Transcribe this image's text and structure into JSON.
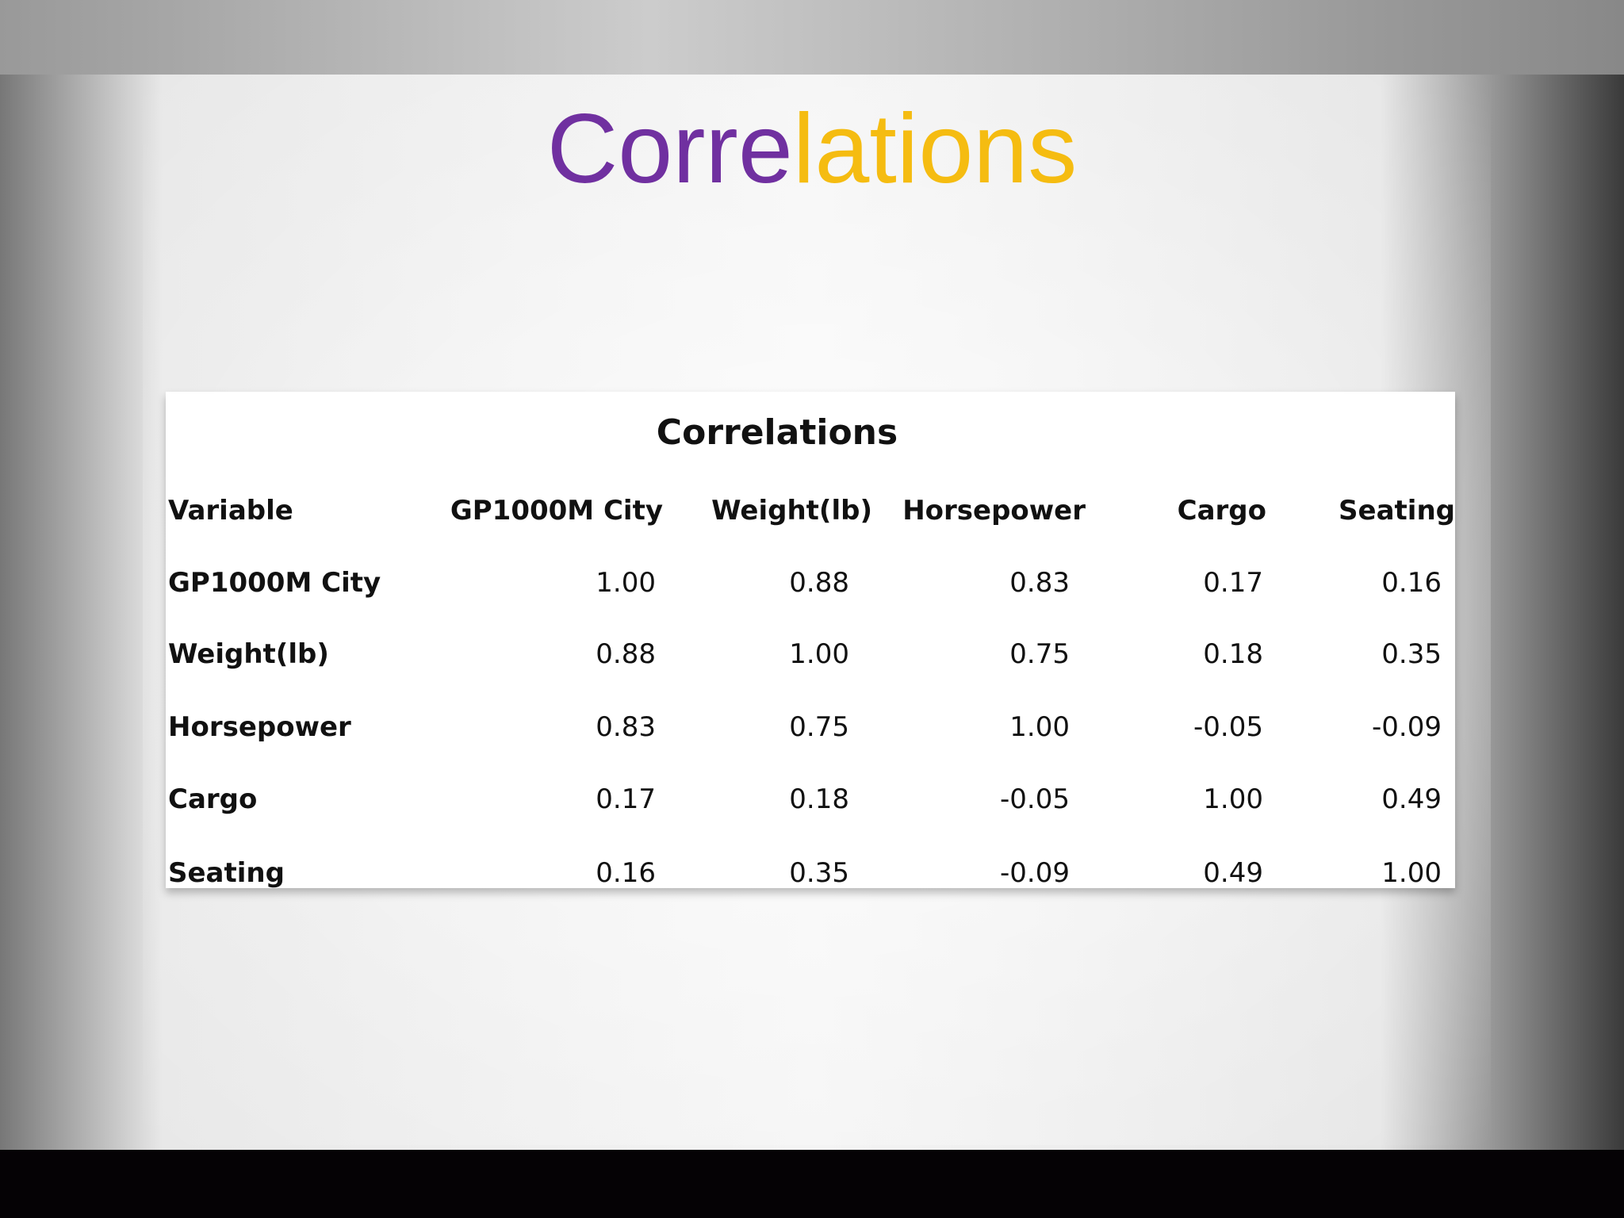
{
  "slide": {
    "title_parts": [
      "Corre",
      "lations"
    ]
  },
  "table": {
    "title": "Correlations",
    "columns": [
      "Variable",
      "GP1000M City",
      "Weight(lb)",
      "Horsepower",
      "Cargo",
      "Seating"
    ],
    "rows": [
      [
        "GP1000M City",
        "1.00",
        "0.88",
        "0.83",
        "0.17",
        "0.16"
      ],
      [
        "Weight(lb)",
        "0.88",
        "1.00",
        "0.75",
        "0.18",
        "0.35"
      ],
      [
        "Horsepower",
        "0.83",
        "0.75",
        "1.00",
        "-0.05",
        "-0.09"
      ],
      [
        "Cargo",
        "0.17",
        "0.18",
        "-0.05",
        "1.00",
        "0.49"
      ],
      [
        "Seating",
        "0.16",
        "0.35",
        "-0.09",
        "0.49",
        "1.00"
      ]
    ]
  }
}
